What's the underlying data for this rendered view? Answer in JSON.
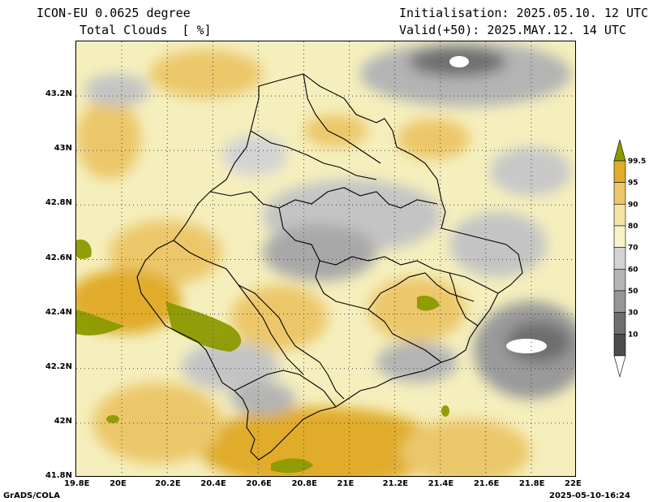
{
  "header": {
    "model": "ICON-EU 0.0625 degree",
    "variable": "Total Clouds  [ %]",
    "init": "Initialisation: 2025.05.10. 12 UTC",
    "valid": "Valid(+50): 2025.MAY.12. 14 UTC"
  },
  "axes": {
    "lat_labels": [
      "43.2N",
      "43N",
      "42.8N",
      "42.6N",
      "42.4N",
      "42.2N",
      "42N",
      "41.8N"
    ],
    "lon_labels": [
      "19.8E",
      "20E",
      "20.2E",
      "20.4E",
      "20.6E",
      "20.8E",
      "21E",
      "21.2E",
      "21.4E",
      "21.6E",
      "21.8E",
      "22E"
    ],
    "lat_range": [
      41.8,
      43.4
    ],
    "lon_range": [
      19.8,
      22.0
    ]
  },
  "legend": {
    "levels": [
      "99.5",
      "95",
      "90",
      "80",
      "70",
      "60",
      "50",
      "30",
      "10"
    ],
    "colors": [
      "#8c9a00",
      "#e0ac2a",
      "#ecc76a",
      "#f4e3a4",
      "#f7f3c8",
      "#d3d3d3",
      "#b4b4b4",
      "#969696",
      "#6e6e6e",
      "#4b4b4b",
      "#ffffff"
    ]
  },
  "footer": {
    "left": "GrADS/COLA",
    "right": "2025-05-10-16:24"
  }
}
